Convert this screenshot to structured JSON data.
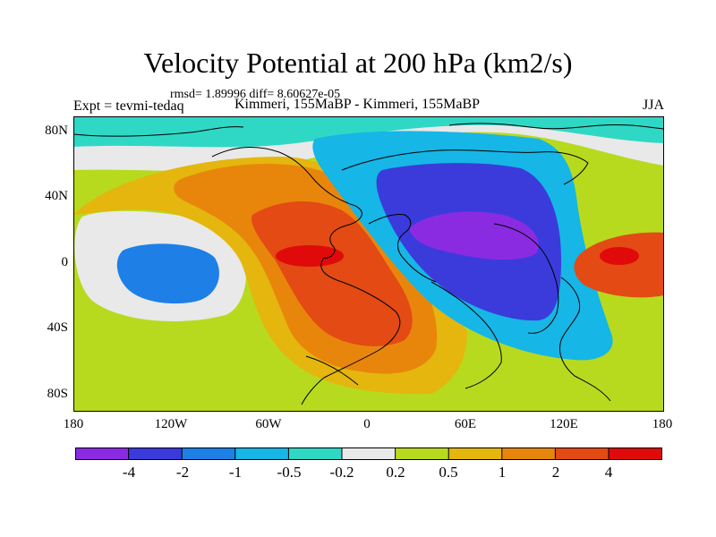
{
  "plot": {
    "title": "Velocity Potential at 200 hPa (km2/s)",
    "stats": "rmsd= 1.89996 diff= 8.60627e-05",
    "left_label": "Expt = tevmi-tedaq",
    "center_label": "Kimmeri, 155MaBP - Kimmeri, 155MaBP",
    "right_label": "JJA"
  },
  "axes": {
    "lat_labels": [
      "80N",
      "40N",
      "0",
      "40S",
      "80S"
    ],
    "lon_labels": [
      "180",
      "120W",
      "60W",
      "0",
      "60E",
      "120E",
      "180"
    ]
  },
  "colorbar": {
    "colors": [
      "#8a2be2",
      "#3b3bdc",
      "#1e7fe6",
      "#16b6e6",
      "#2fd8c5",
      "#e9e9e9",
      "#b8da1e",
      "#e4b60e",
      "#e8860c",
      "#e34a14",
      "#e00a0a"
    ],
    "labels": [
      "-4",
      "-2",
      "-1",
      "-0.5",
      "-0.2",
      "0.2",
      "0.5",
      "1",
      "2",
      "4"
    ]
  },
  "map_fields": [
    {
      "name": "background-positive-field",
      "color": "#b8da1e"
    },
    {
      "name": "arctic-neutral-band",
      "color": "#e9e9e9"
    },
    {
      "name": "arctic-negative-band",
      "color": "#2fd8c5"
    },
    {
      "name": "west-pacific-neutral-ring",
      "color": "#e9e9e9"
    },
    {
      "name": "pacific-negative-center",
      "color": "#1e7fe6"
    },
    {
      "name": "west-positive-ridge",
      "color": "#e4b60e"
    },
    {
      "name": "west-positive-core",
      "color": "#e8860c"
    },
    {
      "name": "west-positive-max",
      "color": "#e34a14"
    },
    {
      "name": "west-positive-peak",
      "color": "#e00a0a"
    },
    {
      "name": "east-negative-outer",
      "color": "#16b6e6"
    },
    {
      "name": "east-negative-core",
      "color": "#3b3bdc"
    },
    {
      "name": "east-negative-peak",
      "color": "#8a2be2"
    },
    {
      "name": "east-positive-center",
      "color": "#e34a14"
    },
    {
      "name": "east-positive-peak",
      "color": "#e00a0a"
    }
  ]
}
